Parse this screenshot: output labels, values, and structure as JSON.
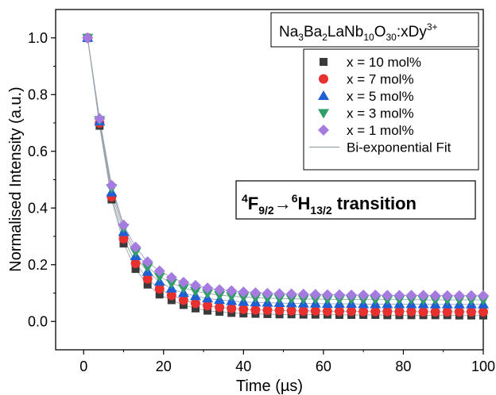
{
  "chart_data": {
    "type": "scatter",
    "title_parts": {
      "base": "Na",
      "s1": "3",
      "b2": "Ba",
      "s2": "2",
      "b3": "LaNb",
      "s3": "10",
      "b4": "O",
      "s4": "30",
      "b5": ":xDy",
      "sup": "3+"
    },
    "transition": {
      "sup1": "4",
      "f": "F",
      "sub1": "9/2",
      "arrow": "→",
      "sup2": "6",
      "h": "H",
      "sub2": "13/2",
      "tail": " transition"
    },
    "xlabel": "Time (µs)",
    "ylabel": "Normalised Intensity (a.u.)",
    "xlim": [
      -7,
      100
    ],
    "ylim": [
      -0.1,
      1.1
    ],
    "xticks": [
      0,
      20,
      40,
      60,
      80,
      100
    ],
    "yticks": [
      0.0,
      0.2,
      0.4,
      0.6,
      0.8,
      1.0
    ],
    "x": [
      1,
      4,
      7,
      10,
      13,
      16,
      19,
      22,
      25,
      28,
      31,
      34,
      37,
      40,
      43,
      46,
      49,
      52,
      55,
      58,
      61,
      64,
      67,
      70,
      73,
      76,
      79,
      82,
      85,
      88,
      91,
      94,
      97,
      100
    ],
    "series": [
      {
        "name": "x = 10 mol%",
        "marker": "square",
        "color": "#3a3a3a",
        "values": [
          1.0,
          0.69,
          0.43,
          0.275,
          0.185,
          0.13,
          0.095,
          0.075,
          0.058,
          0.046,
          0.038,
          0.034,
          0.03,
          0.028,
          0.027,
          0.026,
          0.025,
          0.025,
          0.024,
          0.024,
          0.024,
          0.023,
          0.023,
          0.023,
          0.023,
          0.022,
          0.022,
          0.022,
          0.022,
          0.022,
          0.022,
          0.021,
          0.021,
          0.021
        ]
      },
      {
        "name": "x = 7 mol%",
        "marker": "circle",
        "color": "#e8312f",
        "values": [
          1.0,
          0.7,
          0.44,
          0.292,
          0.205,
          0.15,
          0.115,
          0.092,
          0.075,
          0.064,
          0.056,
          0.05,
          0.046,
          0.043,
          0.041,
          0.04,
          0.039,
          0.038,
          0.037,
          0.037,
          0.036,
          0.036,
          0.036,
          0.035,
          0.035,
          0.035,
          0.035,
          0.035,
          0.034,
          0.034,
          0.034,
          0.034,
          0.034,
          0.034
        ]
      },
      {
        "name": "x = 5 mol%",
        "marker": "triangle-up",
        "color": "#1f5fd6",
        "values": [
          1.0,
          0.705,
          0.455,
          0.315,
          0.23,
          0.175,
          0.14,
          0.116,
          0.1,
          0.089,
          0.081,
          0.076,
          0.072,
          0.069,
          0.067,
          0.066,
          0.065,
          0.064,
          0.063,
          0.063,
          0.062,
          0.062,
          0.062,
          0.061,
          0.061,
          0.061,
          0.061,
          0.061,
          0.061,
          0.06,
          0.06,
          0.06,
          0.06,
          0.06
        ]
      },
      {
        "name": "x = 3 mol%",
        "marker": "triangle-down",
        "color": "#2f9e68",
        "values": [
          1.0,
          0.71,
          0.47,
          0.33,
          0.245,
          0.192,
          0.158,
          0.135,
          0.118,
          0.107,
          0.099,
          0.093,
          0.089,
          0.086,
          0.084,
          0.082,
          0.081,
          0.08,
          0.079,
          0.079,
          0.078,
          0.078,
          0.078,
          0.077,
          0.077,
          0.077,
          0.077,
          0.077,
          0.076,
          0.076,
          0.076,
          0.076,
          0.076,
          0.076
        ]
      },
      {
        "name": "x = 1 mol%",
        "marker": "diamond",
        "color": "#a57be0",
        "values": [
          1.0,
          0.715,
          0.48,
          0.34,
          0.262,
          0.21,
          0.178,
          0.155,
          0.138,
          0.127,
          0.118,
          0.112,
          0.108,
          0.104,
          0.101,
          0.099,
          0.098,
          0.097,
          0.096,
          0.095,
          0.094,
          0.094,
          0.093,
          0.093,
          0.093,
          0.092,
          0.092,
          0.092,
          0.092,
          0.091,
          0.091,
          0.091,
          0.091,
          0.091
        ]
      }
    ],
    "fit_label": "Bi-exponential Fit",
    "fit_color": "#9aa3ad",
    "legend_position": "top-right",
    "grid": false
  }
}
